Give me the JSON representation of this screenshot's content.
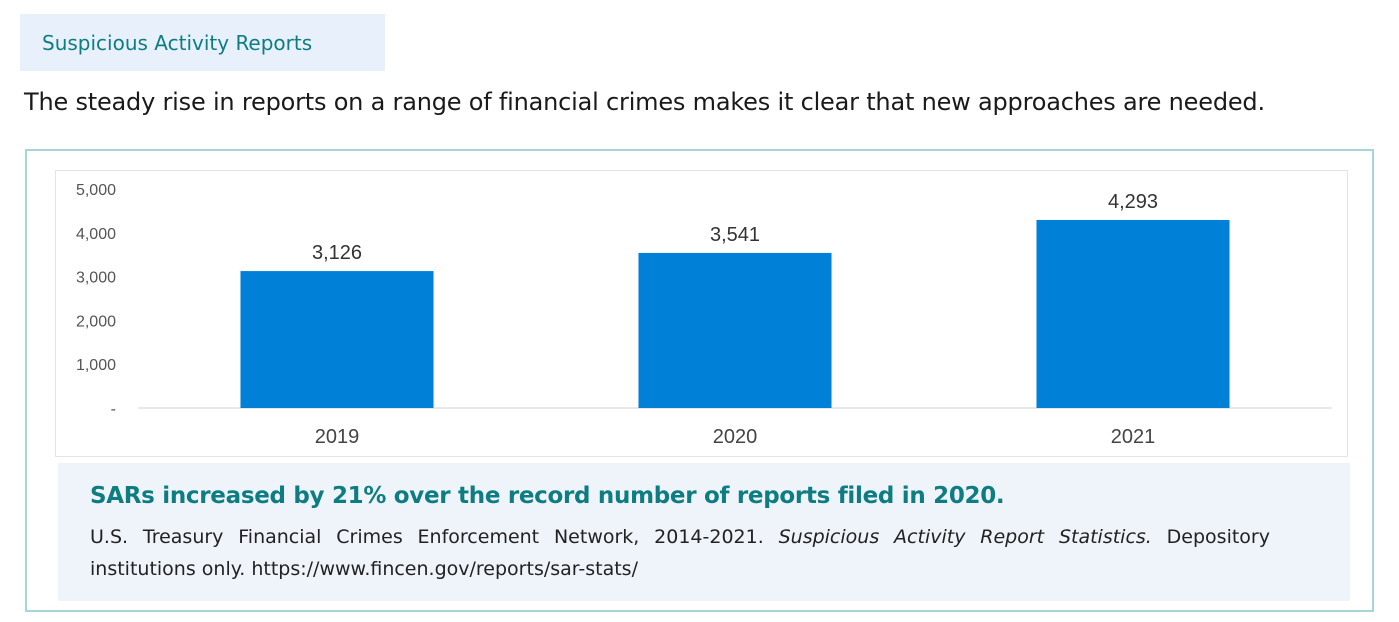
{
  "section_tag": "Suspicious Activity Reports",
  "intro": "The steady rise in reports on a range of financial crimes makes it clear that new approaches are needed.",
  "colors": {
    "bar": "#0080d6",
    "accent": "#0e7d82",
    "caption_bg": "#eff3fa"
  },
  "chart_data": {
    "type": "bar",
    "categories": [
      "2019",
      "2020",
      "2021"
    ],
    "values": [
      3126,
      3541,
      4293
    ],
    "value_labels": [
      "3,126",
      "3,541",
      "4,293"
    ],
    "yticks": [
      0,
      1000,
      2000,
      3000,
      4000,
      5000
    ],
    "ytick_labels": [
      "-",
      "1,000",
      "2,000",
      "3,000",
      "4,000",
      "5,000"
    ],
    "ylim": [
      0,
      5000
    ],
    "grid": false,
    "title": "",
    "xlabel": "",
    "ylabel": ""
  },
  "caption": {
    "headline": "SARs increased by 21% over the record number of reports filed in 2020.",
    "source_prefix": "U.S. Treasury Financial Crimes Enforcement Network, 2014-2021. ",
    "source_title": "Suspicious Activity Report Statistics.",
    "source_suffix": " Depository institutions only.  https://www.fincen.gov/reports/sar-stats/"
  }
}
